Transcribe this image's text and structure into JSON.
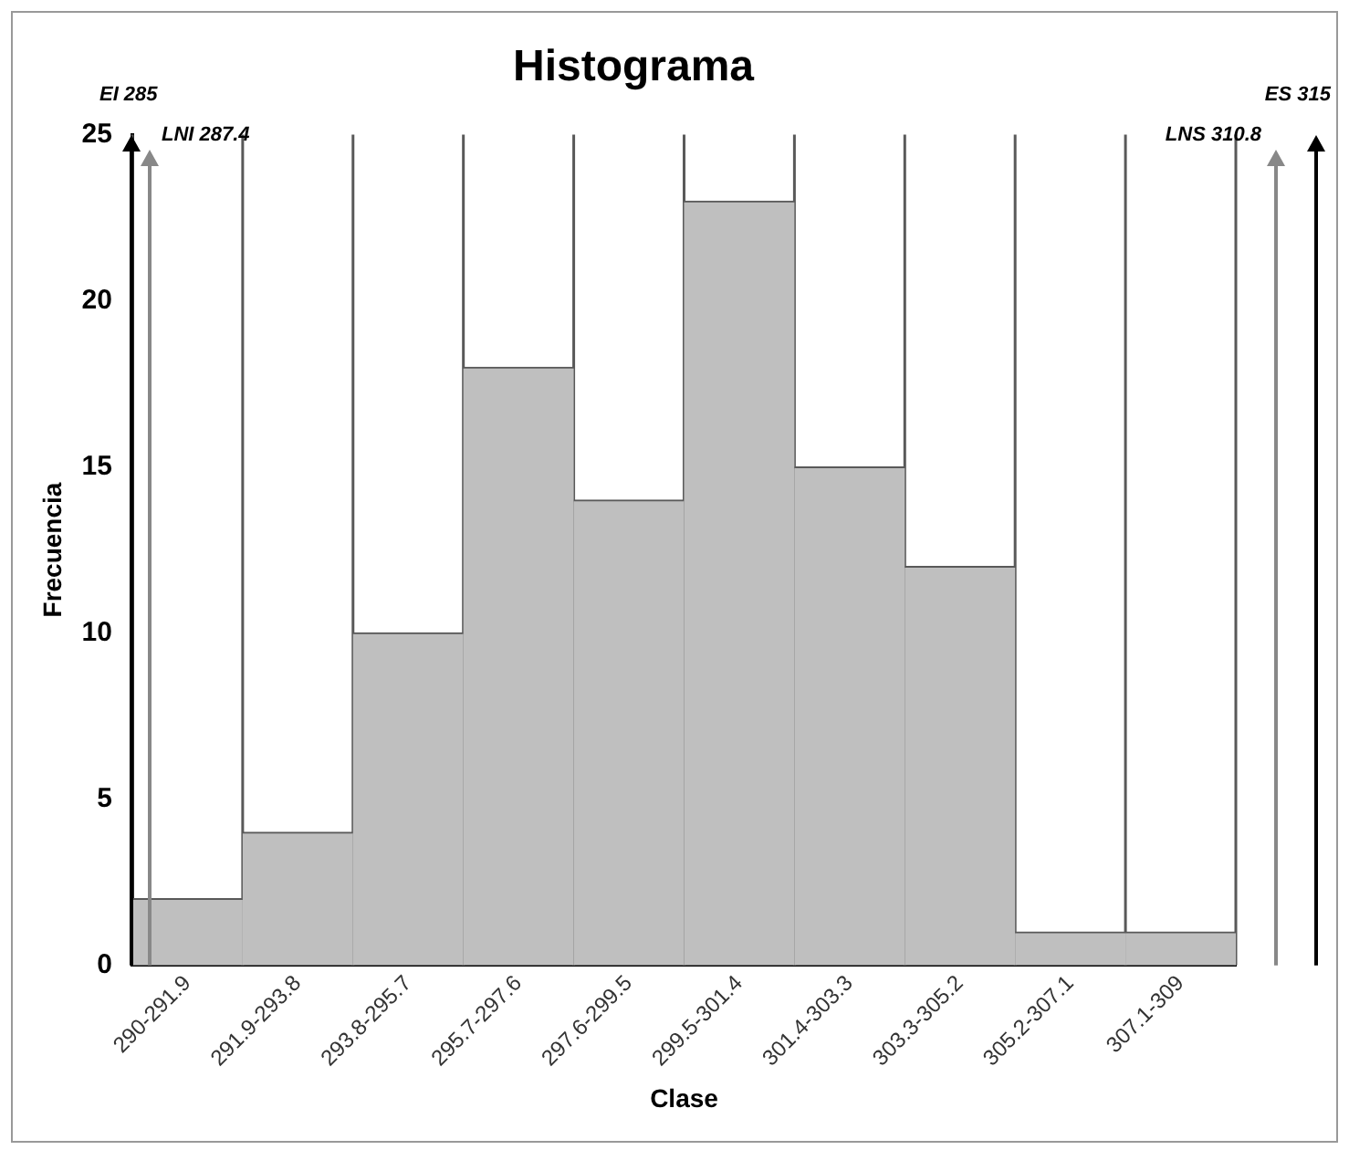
{
  "chart_data": {
    "type": "bar",
    "title": "Histograma",
    "xlabel": "Clase",
    "ylabel": "Frecuencia",
    "categories": [
      "290-291.9",
      "291.9-293.8",
      "293.8-295.7",
      "295.7-297.6",
      "297.6-299.5",
      "299.5-301.4",
      "301.4-303.3",
      "303.3-305.2",
      "305.2-307.1",
      "307.1-309"
    ],
    "values": [
      2,
      4,
      10,
      18,
      14,
      23,
      15,
      12,
      1,
      1
    ],
    "color": "#bfbfbf",
    "ylim": [
      0,
      25
    ],
    "yticks": [
      0,
      5,
      10,
      15,
      20,
      25
    ],
    "grid": false,
    "legend": false,
    "annotations": [
      "EI 285",
      "LNI 287.4",
      "LNS 310.8",
      "ES 315"
    ]
  }
}
